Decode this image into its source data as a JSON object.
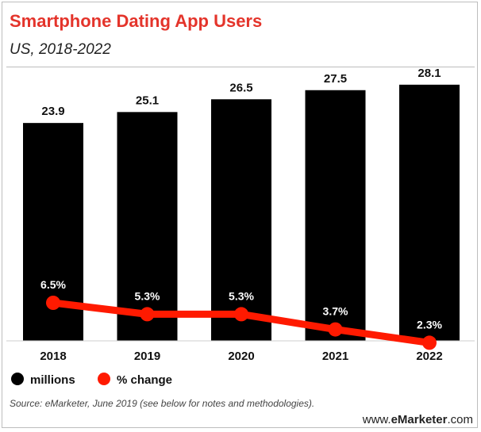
{
  "header": {
    "title": "Smartphone Dating App Users",
    "subtitle": "US, 2018-2022"
  },
  "footer": {
    "source": "Source: eMarketer, June 2019 (see below for notes and methodologies).",
    "brand_prefix": "www.",
    "brand_name": "eMarketer",
    "brand_suffix": ".com"
  },
  "colors": {
    "title": "#e4342b",
    "bars": "#000000",
    "line": "#ff1a00"
  },
  "chart_data": {
    "type": "bar",
    "categories": [
      "2018",
      "2019",
      "2020",
      "2021",
      "2022"
    ],
    "series": [
      {
        "name": "millions",
        "type": "bar",
        "values": [
          23.9,
          25.1,
          26.5,
          27.5,
          28.1
        ],
        "labels": [
          "23.9",
          "25.1",
          "26.5",
          "27.5",
          "28.1"
        ]
      },
      {
        "name": "% change",
        "type": "line",
        "values": [
          6.5,
          5.3,
          5.3,
          3.7,
          2.3
        ],
        "labels": [
          "6.5%",
          "5.3%",
          "5.3%",
          "3.7%",
          "2.3%"
        ]
      }
    ],
    "title": "Smartphone Dating App Users",
    "subtitle": "US, 2018-2022",
    "legend_position": "bottom-left",
    "grid": false
  }
}
